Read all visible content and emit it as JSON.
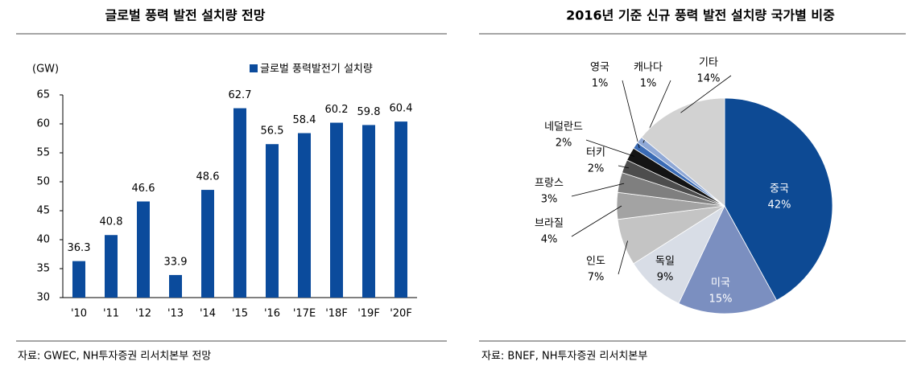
{
  "chart_data": [
    {
      "type": "bar",
      "title": "글로벌 풍력 발전 설치량 전망",
      "y_unit": "(GW)",
      "categories": [
        "'10",
        "'11",
        "'12",
        "'13",
        "'14",
        "'15",
        "'16",
        "'17E",
        "'18F",
        "'19F",
        "'20F"
      ],
      "series": [
        {
          "name": "글로벌 풍력발전기 설치량",
          "color": "#0b4b9c",
          "values": [
            36.3,
            40.8,
            46.6,
            33.9,
            48.6,
            62.7,
            56.5,
            58.4,
            60.2,
            59.8,
            60.4
          ]
        }
      ],
      "ylim": [
        30,
        65
      ],
      "yticks": [
        30,
        35,
        40,
        45,
        50,
        55,
        60,
        65
      ],
      "grid": false,
      "legend": "top-right",
      "source": "자료: GWEC, NH투자증권 리서치본부 전망"
    },
    {
      "type": "pie",
      "title": "2016년 기준 신규 풍력 발전 설치량 국가별 비중",
      "categories": [
        "중국",
        "미국",
        "독일",
        "인도",
        "브라질",
        "프랑스",
        "터키",
        "네덜란드",
        "영국",
        "캐나다",
        "기타"
      ],
      "values": [
        42,
        15,
        9,
        7,
        4,
        3,
        2,
        2,
        1,
        1,
        14
      ],
      "value_labels": [
        "42%",
        "15%",
        "9%",
        "7%",
        "4%",
        "3%",
        "2%",
        "2%",
        "1%",
        "1%",
        "14%"
      ],
      "colors": [
        "#0d4a94",
        "#7b8fc0",
        "#d8dde6",
        "#c4c4c4",
        "#a3a3a3",
        "#7f7f7f",
        "#4d4d4d",
        "#141414",
        "#3a6bb5",
        "#8fa8d6",
        "#d2d2d2"
      ],
      "source": "자료: BNEF, NH투자증권 리서치본부"
    }
  ]
}
